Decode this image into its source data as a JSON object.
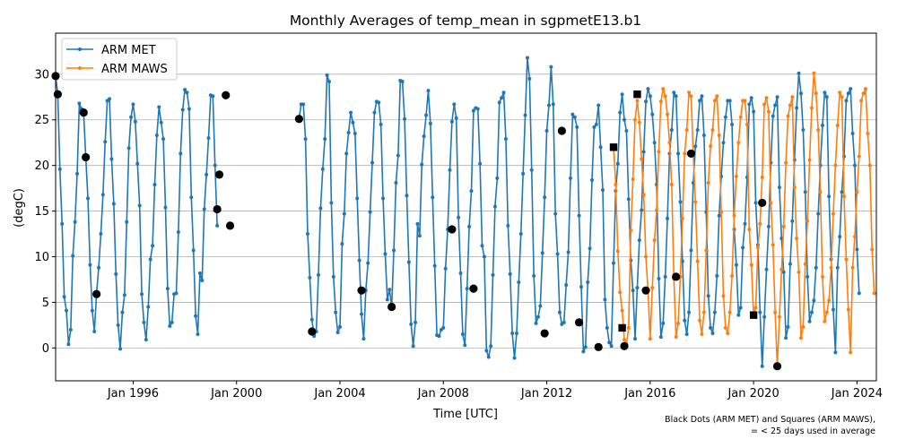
{
  "chart_data": {
    "type": "line",
    "title": "Monthly Averages of temp_mean in sgpmetE13.b1",
    "xlabel": "Time [UTC]",
    "ylabel": "(degC)",
    "xlim": [
      "1993-01-01",
      "2024-10-01"
    ],
    "ylim": [
      -3.6,
      34.5
    ],
    "x_ticks": [
      "1996-01-01",
      "2000-01-01",
      "2004-01-01",
      "2008-01-01",
      "2012-01-01",
      "2016-01-01",
      "2020-01-01",
      "2024-01-01"
    ],
    "x_tick_labels": [
      "Jan 1996",
      "Jan 2000",
      "Jan 2004",
      "Jan 2008",
      "Jan 2012",
      "Jan 2016",
      "Jan 2020",
      "Jan 2024"
    ],
    "y_ticks": [
      0,
      5,
      10,
      15,
      20,
      25,
      30
    ],
    "y_tick_labels": [
      "0",
      "5",
      "10",
      "15",
      "20",
      "25",
      "30"
    ],
    "grid": "horizontal",
    "legend_position": "top-left",
    "footnote_lines": [
      "Black Dots (ARM MET) and Squares (ARM MAWS),",
      "= < 25 days used in average"
    ],
    "series": [
      {
        "name": "ARM MET",
        "color": "#1f77b4",
        "segments": [
          {
            "start": "1993-01",
            "values": [
              29.8,
              27.8,
              19.6,
              13.6,
              5.6,
              4.1,
              0.4,
              2.0,
              10.1,
              13.8,
              19.1,
              26.8,
              26.2,
              25.8,
              20.9,
              16.4,
              9.1,
              4.1,
              1.8,
              5.9,
              8.8,
              12.5,
              16.8,
              22.6,
              27.1,
              27.3,
              20.7,
              15.8,
              8.1,
              2.5,
              -0.1,
              3.9,
              5.8,
              13.8,
              21.9,
              25.3,
              26.7,
              24.8,
              20.2,
              15.6,
              5.9,
              2.8,
              0.9,
              4.5,
              9.7,
              11.2,
              17.9,
              23.3,
              26.4,
              24.7,
              22.9,
              15.4,
              6.5,
              2.4,
              2.8,
              5.9,
              6.0,
              12.7,
              21.3,
              26.1,
              28.3,
              28.0,
              26.2,
              16.5,
              10.7,
              3.5,
              1.5,
              8.2,
              7.4,
              15.2,
              19.0,
              23.0,
              27.7,
              27.6,
              20.0,
              13.4
            ]
          },
          {
            "start": "2002-06",
            "values": [
              25.1,
              26.7,
              26.7,
              22.9,
              12.5,
              7.7,
              3.1,
              1.3,
              1.8,
              8.0,
              15.3,
              19.6,
              22.9,
              29.9,
              29.2,
              15.9,
              7.8,
              3.9,
              1.7,
              2.3,
              11.4,
              14.7,
              21.3,
              23.6,
              25.8,
              24.7,
              23.5,
              16.4,
              9.6,
              3.7,
              1.0,
              6.3,
              9.3,
              14.9,
              20.3,
              25.8,
              27.0,
              26.9,
              24.5,
              16.4,
              10.3,
              5.3,
              6.4,
              4.5,
              10.7,
              18.1,
              21.1,
              29.3,
              29.2,
              25.1,
              16.7,
              9.4,
              2.6,
              0.2,
              2.8,
              13.6,
              12.3,
              20.1,
              23.2,
              25.5,
              28.2,
              24.6,
              16.5,
              9.0,
              1.4,
              1.3,
              2.0,
              2.2,
              8.7,
              13.0,
              19.5,
              24.8,
              26.7,
              25.2,
              14.3,
              8.2,
              1.5,
              0.3,
              6.5,
              13.3,
              17.2,
              26.0,
              26.3,
              26.2,
              20.2,
              11.2,
              10.0,
              -0.3,
              -1.0,
              0.2,
              8.0,
              15.5,
              18.6,
              26.9,
              27.4,
              28.0,
              22.9,
              13.4,
              8.1,
              1.6,
              -1.1,
              1.6,
              7.2,
              12.5,
              19.1,
              25.5,
              31.8,
              29.5,
              19.5,
              7.9,
              2.7,
              3.4,
              4.6,
              10.4,
              16.5,
              23.8,
              26.6,
              30.8,
              26.7,
              14.7,
              10.3,
              3.9,
              2.6,
              2.8,
              6.9,
              10.5,
              18.6,
              25.6,
              25.3,
              24.2,
              14.5,
              6.7,
              -0.4,
              0.1,
              7.2,
              10.9,
              18.4,
              24.2,
              24.5,
              26.6,
              22.0,
              17.3,
              5.3,
              2.2,
              0.6,
              0.2,
              9.3,
              17.2,
              20.2,
              25.8,
              27.8,
              25.0,
              23.8,
              16.3,
              9.6,
              6.3,
              1.0,
              6.6,
              11.8,
              15.1,
              21.5,
              27.0,
              28.4,
              27.6,
              25.6,
              22.5,
              17.9,
              7.6,
              1.2,
              2.7,
              7.8,
              14.2,
              21.3,
              23.9,
              28.0,
              27.6,
              21.3,
              16.0,
              9.5,
              3.0,
              1.5,
              3.9,
              10.7,
              18.1,
              22.1,
              23.9,
              27.1,
              27.6,
              23.3,
              14.9,
              5.7,
              2.2,
              1.6,
              3.9,
              7.9,
              14.5,
              18.8,
              22.5,
              25.3,
              27.1,
              27.1,
              24.5,
              13.0,
              9.1,
              3.6,
              4.4,
              11.0,
              13.6,
              18.7,
              26.7,
              27.4,
              25.9,
              15.9,
              11.3,
              3.9,
              -2.0,
              3.4,
              8.6,
              13.3,
              20.3,
              25.4,
              26.6,
              27.5,
              17.6,
              12.0,
              8.3,
              1.1,
              2.3,
              9.2,
              13.9,
              20.6,
              26.3,
              30.1,
              27.9,
              23.9,
              17.1,
              7.8,
              2.9,
              3.9,
              5.2,
              8.8,
              14.7,
              20.0,
              24.4,
              28.0,
              27.5,
              16.6,
              9.7,
              4.2,
              -0.5,
              8.8,
              12.2,
              17.1,
              21.0,
              27.1,
              27.9,
              28.4,
              23.5,
              20.0,
              10.8,
              6.0
            ]
          }
        ]
      },
      {
        "name": "ARM MAWS",
        "color": "#ff7f0e",
        "segments": [
          {
            "start": "2014-08",
            "values": [
              22.0,
              17.9,
              10.6,
              6.1,
              4.1,
              0.9,
              0.4,
              2.2,
              12.9,
              18.5,
              25.0,
              27.1,
              24.7,
              20.7,
              16.8,
              10.0,
              6.3,
              1.0,
              6.6,
              11.8,
              15.1,
              21.5,
              27.0,
              28.4,
              27.6,
              25.6,
              22.5,
              17.9,
              7.6,
              1.2,
              2.7,
              7.8,
              14.2,
              21.3,
              23.9,
              28.0,
              27.6,
              21.3,
              16.0,
              9.5,
              3.0,
              1.5,
              3.9,
              10.7,
              18.1,
              22.1,
              23.9,
              27.1,
              27.6,
              23.3,
              14.9,
              5.7,
              2.2,
              1.6,
              3.9,
              7.9,
              14.5,
              18.8,
              22.5,
              25.3,
              27.1,
              27.1,
              24.5,
              13.0,
              9.1,
              3.6,
              4.4,
              11.0,
              13.6,
              18.7,
              26.7,
              27.4,
              25.9,
              15.9,
              11.3,
              3.9,
              -2.0,
              3.4,
              8.6,
              13.3,
              20.3,
              25.4,
              26.6,
              27.5,
              17.6,
              12.0,
              8.3,
              1.1,
              2.3,
              9.2,
              13.9,
              20.6,
              26.3,
              30.1,
              27.9,
              23.9,
              17.1,
              7.8,
              2.9,
              3.9,
              5.2,
              8.8,
              14.7,
              20.0,
              24.4,
              28.0,
              27.5,
              16.6,
              9.7,
              4.2,
              -0.5,
              8.8,
              12.2,
              17.1,
              21.0,
              27.1,
              27.9,
              28.4,
              23.5,
              20.0,
              10.8,
              6.0
            ]
          }
        ]
      }
    ],
    "markers": {
      "ARM MET (black dots)": [
        {
          "x": "1993-01",
          "y": 29.8
        },
        {
          "x": "1993-02",
          "y": 27.8
        },
        {
          "x": "1994-02",
          "y": 25.8
        },
        {
          "x": "1994-03",
          "y": 20.9
        },
        {
          "x": "1994-08",
          "y": 5.9
        },
        {
          "x": "1999-04",
          "y": 15.2
        },
        {
          "x": "1999-05",
          "y": 19.0
        },
        {
          "x": "1999-08",
          "y": 27.7
        },
        {
          "x": "1999-10",
          "y": 13.4
        },
        {
          "x": "2002-06",
          "y": 25.1
        },
        {
          "x": "2002-12",
          "y": 1.8
        },
        {
          "x": "2004-11",
          "y": 6.3
        },
        {
          "x": "2006-01",
          "y": 4.5
        },
        {
          "x": "2008-05",
          "y": 13.0
        },
        {
          "x": "2009-03",
          "y": 6.5
        },
        {
          "x": "2011-12",
          "y": 1.6
        },
        {
          "x": "2012-08",
          "y": 23.8
        },
        {
          "x": "2013-04",
          "y": 2.8
        },
        {
          "x": "2014-01",
          "y": 0.1
        },
        {
          "x": "2015-01",
          "y": 0.2
        },
        {
          "x": "2015-11",
          "y": 6.3
        },
        {
          "x": "2017-01",
          "y": 7.8
        },
        {
          "x": "2017-08",
          "y": 21.3
        },
        {
          "x": "2020-05",
          "y": 15.9
        },
        {
          "x": "2020-12",
          "y": -2.0
        }
      ],
      "ARM MAWS (black squares)": [
        {
          "x": "2014-08",
          "y": 22.0
        },
        {
          "x": "2014-12",
          "y": 2.2
        },
        {
          "x": "2015-07",
          "y": 27.8
        },
        {
          "x": "2020-01",
          "y": 3.6
        }
      ]
    }
  }
}
